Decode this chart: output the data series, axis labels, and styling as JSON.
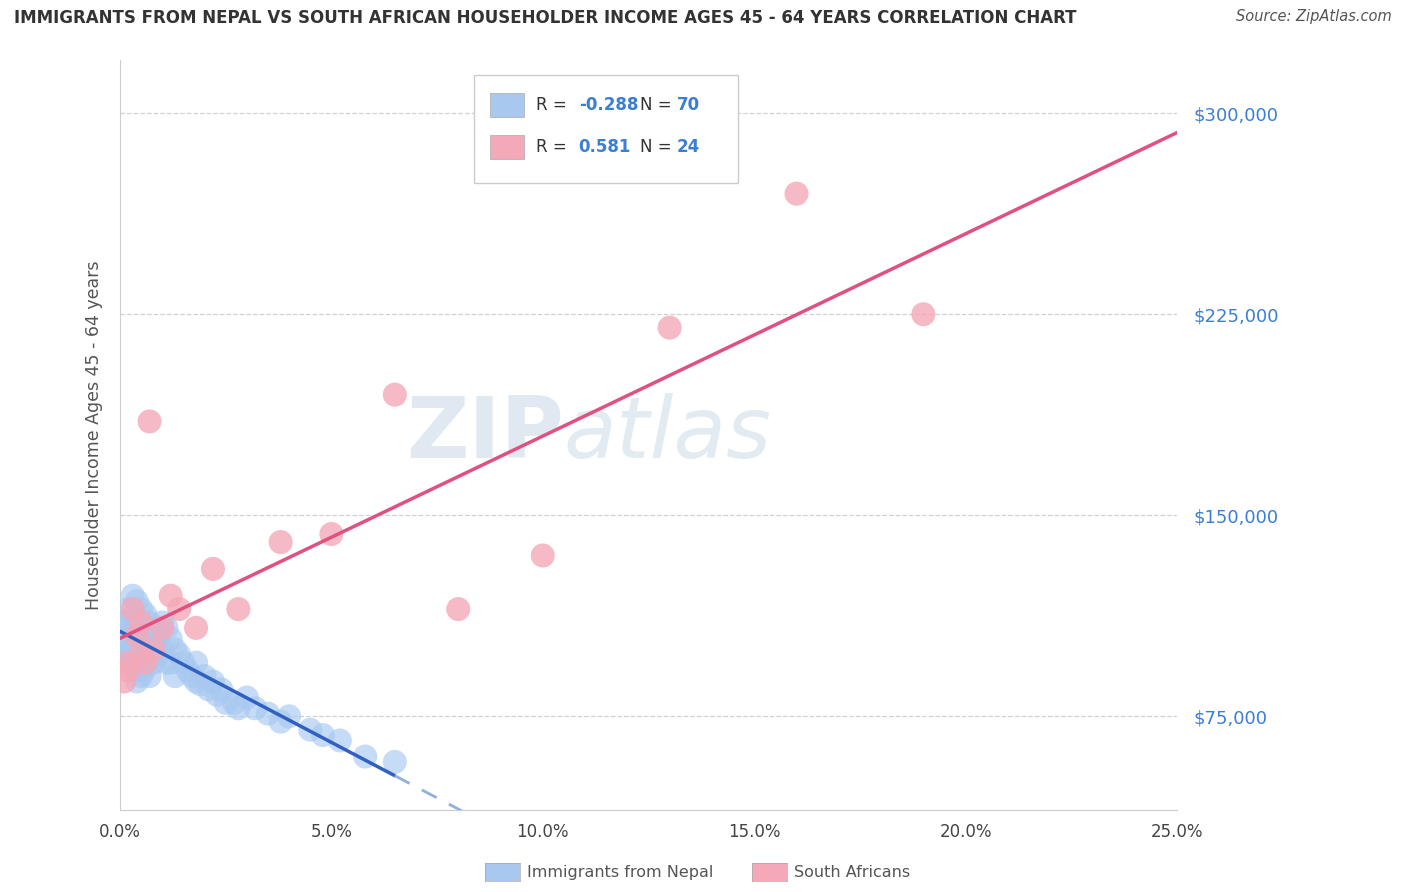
{
  "title": "IMMIGRANTS FROM NEPAL VS SOUTH AFRICAN HOUSEHOLDER INCOME AGES 45 - 64 YEARS CORRELATION CHART",
  "source": "Source: ZipAtlas.com",
  "ylabel": "Householder Income Ages 45 - 64 years",
  "xlim": [
    0.0,
    0.25
  ],
  "ylim": [
    40000,
    320000
  ],
  "yticks": [
    75000,
    150000,
    225000,
    300000
  ],
  "ytick_labels": [
    "$75,000",
    "$150,000",
    "$225,000",
    "$300,000"
  ],
  "xticks": [
    0.0,
    0.05,
    0.1,
    0.15,
    0.2,
    0.25
  ],
  "xtick_labels": [
    "0.0%",
    "5.0%",
    "10.0%",
    "15.0%",
    "20.0%",
    "25.0%"
  ],
  "nepal_R": -0.288,
  "nepal_N": 70,
  "sa_R": 0.581,
  "sa_N": 24,
  "nepal_color": "#a8c8f0",
  "sa_color": "#f4a8b8",
  "nepal_line_color": "#3060c0",
  "sa_line_color": "#e05080",
  "nepal_line_dash_color": "#90b0e0",
  "legend_nepal_label": "Immigrants from Nepal",
  "legend_sa_label": "South Africans",
  "watermark_zip": "ZIP",
  "watermark_atlas": "atlas",
  "background_color": "#ffffff",
  "nepal_scatter_x": [
    0.001,
    0.001,
    0.001,
    0.002,
    0.002,
    0.002,
    0.002,
    0.002,
    0.003,
    0.003,
    0.003,
    0.003,
    0.003,
    0.004,
    0.004,
    0.004,
    0.004,
    0.004,
    0.004,
    0.005,
    0.005,
    0.005,
    0.005,
    0.005,
    0.006,
    0.006,
    0.006,
    0.006,
    0.007,
    0.007,
    0.007,
    0.007,
    0.008,
    0.008,
    0.008,
    0.009,
    0.009,
    0.01,
    0.01,
    0.011,
    0.011,
    0.012,
    0.012,
    0.013,
    0.013,
    0.014,
    0.015,
    0.016,
    0.017,
    0.018,
    0.018,
    0.019,
    0.02,
    0.021,
    0.022,
    0.023,
    0.024,
    0.025,
    0.027,
    0.028,
    0.03,
    0.032,
    0.035,
    0.038,
    0.04,
    0.045,
    0.048,
    0.052,
    0.058,
    0.065
  ],
  "nepal_scatter_y": [
    110000,
    105000,
    100000,
    115000,
    108000,
    102000,
    98000,
    95000,
    120000,
    112000,
    106000,
    100000,
    95000,
    118000,
    110000,
    104000,
    98000,
    92000,
    88000,
    115000,
    108000,
    102000,
    96000,
    90000,
    113000,
    107000,
    100000,
    93000,
    110000,
    104000,
    97000,
    90000,
    108000,
    102000,
    95000,
    105000,
    98000,
    110000,
    100000,
    108000,
    95000,
    104000,
    95000,
    100000,
    90000,
    98000,
    95000,
    92000,
    90000,
    88000,
    95000,
    87000,
    90000,
    85000,
    88000,
    83000,
    85000,
    80000,
    80000,
    78000,
    82000,
    78000,
    76000,
    73000,
    75000,
    70000,
    68000,
    66000,
    60000,
    58000
  ],
  "sa_scatter_x": [
    0.001,
    0.002,
    0.002,
    0.003,
    0.004,
    0.005,
    0.005,
    0.006,
    0.007,
    0.008,
    0.01,
    0.012,
    0.014,
    0.018,
    0.022,
    0.028,
    0.038,
    0.05,
    0.065,
    0.08,
    0.1,
    0.13,
    0.16,
    0.19
  ],
  "sa_scatter_y": [
    88000,
    92000,
    95000,
    115000,
    105000,
    98000,
    110000,
    95000,
    185000,
    100000,
    108000,
    120000,
    115000,
    108000,
    130000,
    115000,
    140000,
    143000,
    195000,
    115000,
    135000,
    220000,
    270000,
    225000
  ]
}
